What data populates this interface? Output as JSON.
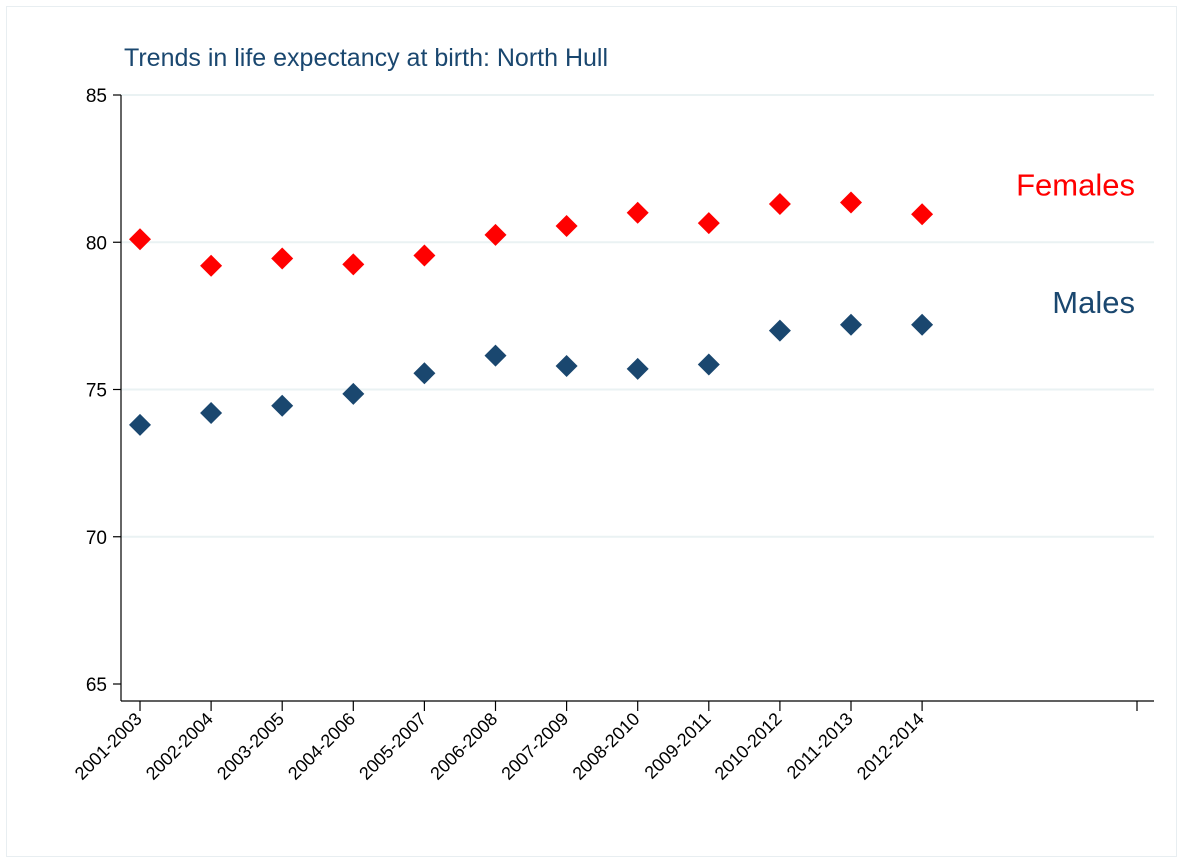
{
  "chart_data": {
    "type": "scatter",
    "title": "Trends in life expectancy at birth: North Hull",
    "xlabel": "",
    "ylabel": "",
    "categories": [
      "2001-2003",
      "2002-2004",
      "2003-2005",
      "2004-2006",
      "2005-2007",
      "2006-2008",
      "2007-2009",
      "2008-2010",
      "2009-2011",
      "2010-2012",
      "2011-2013",
      "2012-2014"
    ],
    "ylim": [
      65,
      85
    ],
    "yticks": [
      "65",
      "70",
      "75",
      "80",
      "85"
    ],
    "grid": true,
    "series": [
      {
        "name": "Females",
        "color": "#ff0000",
        "values": [
          80.1,
          79.2,
          79.45,
          79.25,
          79.55,
          80.25,
          80.55,
          81.0,
          80.65,
          81.3,
          81.35,
          80.95
        ]
      },
      {
        "name": "Males",
        "color": "#1a476f",
        "values": [
          73.8,
          74.2,
          74.45,
          74.85,
          75.55,
          76.15,
          75.8,
          75.7,
          75.85,
          77.0,
          77.2,
          77.2
        ]
      }
    ]
  }
}
